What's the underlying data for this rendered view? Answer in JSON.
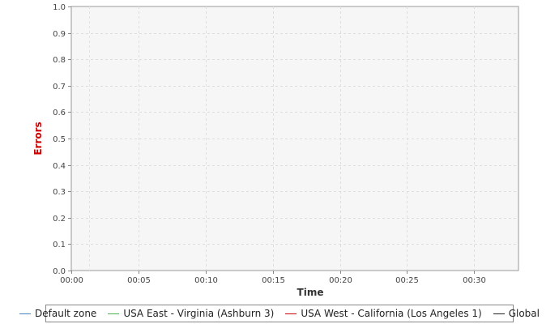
{
  "chart_data": {
    "type": "line",
    "title": "",
    "xlabel": "Time",
    "ylabel": "Errors",
    "ylabel_color": "#cc0000",
    "ylim": [
      0.0,
      1.0
    ],
    "y_ticks": [
      "0.0",
      "0.1",
      "0.2",
      "0.3",
      "0.4",
      "0.5",
      "0.6",
      "0.7",
      "0.8",
      "0.9",
      "1.0"
    ],
    "xlim_minutes": [
      0,
      33.3
    ],
    "x_ticks": [
      "00:00",
      "00:05",
      "00:10",
      "00:15",
      "00:20",
      "00:25",
      "00:30"
    ],
    "grid": true,
    "legend_position": "bottom",
    "series": [
      {
        "name": "Default zone",
        "color": "#4a7fc1",
        "values": []
      },
      {
        "name": "USA East - Virginia (Ashburn 3)",
        "color": "#4caf50",
        "values": []
      },
      {
        "name": "USA West - California (Los Angeles 1)",
        "color": "#cc0000",
        "values": []
      },
      {
        "name": "Global",
        "color": "#222222",
        "values": []
      }
    ]
  }
}
